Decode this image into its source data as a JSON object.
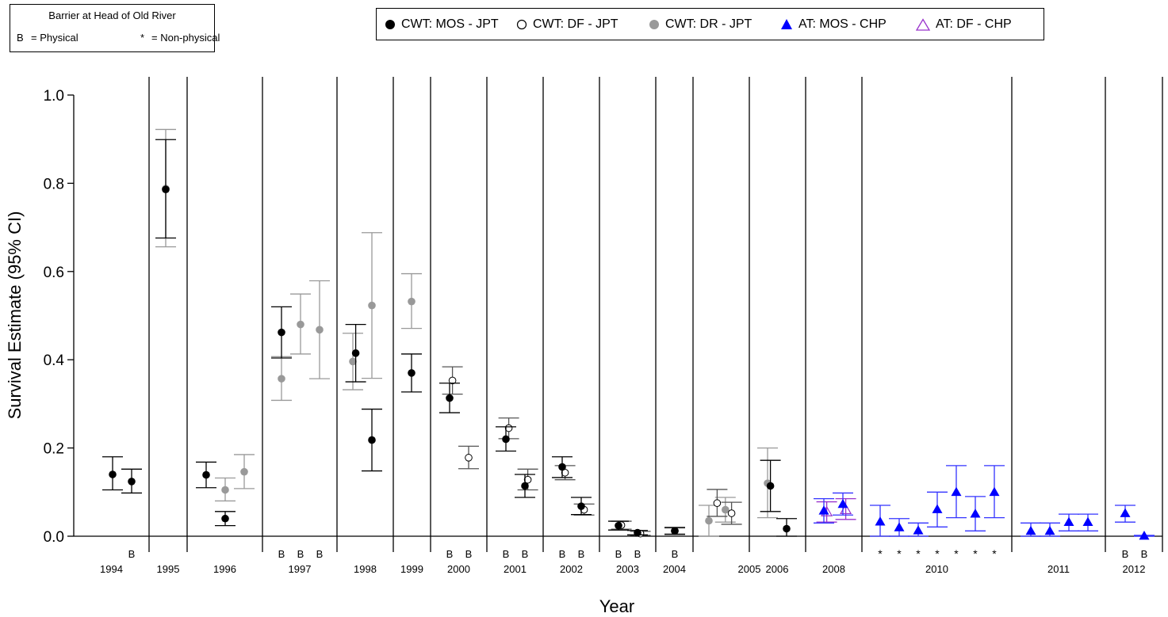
{
  "barrier_legend": {
    "title": "Barrier at Head of Old River",
    "physical_symbol": "B",
    "physical_label": "= Physical",
    "nonphysical_symbol": "*",
    "nonphysical_label": "= Non-physical"
  },
  "series_legend": [
    {
      "key": "mos_jpt",
      "label": "CWT: MOS - JPT",
      "marker": "filled-circle",
      "color": "#000000"
    },
    {
      "key": "df_jpt",
      "label": "CWT: DF - JPT",
      "marker": "open-circle",
      "color": "#000000"
    },
    {
      "key": "dr_jpt",
      "label": "CWT: DR - JPT",
      "marker": "filled-circle",
      "color": "#999999"
    },
    {
      "key": "at_mos_chp",
      "label": "AT: MOS - CHP",
      "marker": "filled-triangle",
      "color": "#0000ff"
    },
    {
      "key": "at_df_chp",
      "label": "AT: DF - CHP",
      "marker": "open-triangle",
      "color": "#9933cc"
    }
  ],
  "chart_data": {
    "type": "scatter",
    "xlabel": "Year",
    "ylabel": "Survival Estimate (95% CI)",
    "ylim": [
      0,
      1.0
    ],
    "yticks": [
      "0.0",
      "0.2",
      "0.4",
      "0.6",
      "0.8",
      "1.0"
    ],
    "years": [
      "1994",
      "1995",
      "1996",
      "1997",
      "1998",
      "1999",
      "2000",
      "2001",
      "2002",
      "2003",
      "2004",
      "2005",
      "2006",
      "2008",
      "2010",
      "2011",
      "2012"
    ],
    "points": [
      {
        "year": "1994",
        "slot": 0,
        "series": "mos_jpt",
        "est": 0.14,
        "lo": 0.105,
        "hi": 0.18
      },
      {
        "year": "1994",
        "slot": 1,
        "series": "mos_jpt",
        "est": 0.124,
        "lo": 0.098,
        "hi": 0.152,
        "barrier": "B"
      },
      {
        "year": "1995",
        "slot": 0,
        "series": "dr_jpt",
        "est": 0.788,
        "lo": 0.656,
        "hi": 0.922
      },
      {
        "year": "1995",
        "slot": 0.15,
        "series": "mos_jpt",
        "est": 0.786,
        "lo": 0.676,
        "hi": 0.899
      },
      {
        "year": "1996",
        "slot": 0,
        "series": "mos_jpt",
        "est": 0.139,
        "lo": 0.11,
        "hi": 0.168
      },
      {
        "year": "1996",
        "slot": 1,
        "series": "dr_jpt",
        "est": 0.105,
        "lo": 0.08,
        "hi": 0.132
      },
      {
        "year": "1996",
        "slot": 1,
        "series": "mos_jpt",
        "est": 0.04,
        "lo": 0.024,
        "hi": 0.056
      },
      {
        "year": "1996",
        "slot": 2,
        "series": "dr_jpt",
        "est": 0.146,
        "lo": 0.108,
        "hi": 0.185
      },
      {
        "year": "1997",
        "slot": 0,
        "series": "mos_jpt",
        "est": 0.462,
        "lo": 0.404,
        "hi": 0.52,
        "barrier": "B"
      },
      {
        "year": "1997",
        "slot": 0,
        "series": "dr_jpt",
        "est": 0.357,
        "lo": 0.308,
        "hi": 0.407
      },
      {
        "year": "1997",
        "slot": 1,
        "series": "dr_jpt",
        "est": 0.48,
        "lo": 0.413,
        "hi": 0.549,
        "barrier": "B"
      },
      {
        "year": "1997",
        "slot": 2,
        "series": "dr_jpt",
        "est": 0.468,
        "lo": 0.357,
        "hi": 0.579,
        "barrier": "B"
      },
      {
        "year": "1998",
        "slot": 0,
        "series": "dr_jpt",
        "est": 0.396,
        "lo": 0.332,
        "hi": 0.46
      },
      {
        "year": "1998",
        "slot": 0.15,
        "series": "mos_jpt",
        "est": 0.415,
        "lo": 0.35,
        "hi": 0.48
      },
      {
        "year": "1998",
        "slot": 1,
        "series": "dr_jpt",
        "est": 0.523,
        "lo": 0.358,
        "hi": 0.688
      },
      {
        "year": "1998",
        "slot": 1,
        "series": "mos_jpt",
        "est": 0.218,
        "lo": 0.148,
        "hi": 0.288
      },
      {
        "year": "1999",
        "slot": 0,
        "series": "dr_jpt",
        "est": 0.532,
        "lo": 0.471,
        "hi": 0.595
      },
      {
        "year": "1999",
        "slot": 0,
        "series": "mos_jpt",
        "est": 0.37,
        "lo": 0.327,
        "hi": 0.413
      },
      {
        "year": "2000",
        "slot": 0,
        "series": "mos_jpt",
        "est": 0.313,
        "lo": 0.28,
        "hi": 0.347,
        "barrier": "B"
      },
      {
        "year": "2000",
        "slot": 0.15,
        "series": "df_jpt",
        "est": 0.353,
        "lo": 0.322,
        "hi": 0.384
      },
      {
        "year": "2000",
        "slot": 1,
        "series": "df_jpt",
        "est": 0.178,
        "lo": 0.153,
        "hi": 0.204,
        "barrier": "B"
      },
      {
        "year": "2001",
        "slot": 0,
        "series": "mos_jpt",
        "est": 0.22,
        "lo": 0.193,
        "hi": 0.248,
        "barrier": "B"
      },
      {
        "year": "2001",
        "slot": 0.15,
        "series": "df_jpt",
        "est": 0.245,
        "lo": 0.221,
        "hi": 0.268
      },
      {
        "year": "2001",
        "slot": 1,
        "series": "mos_jpt",
        "est": 0.114,
        "lo": 0.088,
        "hi": 0.14,
        "barrier": "B"
      },
      {
        "year": "2001",
        "slot": 1.15,
        "series": "df_jpt",
        "est": 0.128,
        "lo": 0.105,
        "hi": 0.152
      },
      {
        "year": "2002",
        "slot": 0,
        "series": "mos_jpt",
        "est": 0.157,
        "lo": 0.133,
        "hi": 0.18,
        "barrier": "B"
      },
      {
        "year": "2002",
        "slot": 0.15,
        "series": "df_jpt",
        "est": 0.144,
        "lo": 0.128,
        "hi": 0.16
      },
      {
        "year": "2002",
        "slot": 1,
        "series": "mos_jpt",
        "est": 0.068,
        "lo": 0.049,
        "hi": 0.088,
        "barrier": "B"
      },
      {
        "year": "2002",
        "slot": 1.15,
        "series": "df_jpt",
        "est": 0.06,
        "lo": 0.048,
        "hi": 0.073
      },
      {
        "year": "2003",
        "slot": 0,
        "series": "mos_jpt",
        "est": 0.024,
        "lo": 0.014,
        "hi": 0.034,
        "barrier": "B"
      },
      {
        "year": "2003",
        "slot": 0.15,
        "series": "df_jpt",
        "est": 0.025,
        "lo": 0.016,
        "hi": 0.034
      },
      {
        "year": "2003",
        "slot": 1,
        "series": "mos_jpt",
        "est": 0.008,
        "lo": 0.003,
        "hi": 0.013,
        "barrier": "B"
      },
      {
        "year": "2003",
        "slot": 1.15,
        "series": "df_jpt",
        "est": 0.006,
        "lo": 0.002,
        "hi": 0.011
      },
      {
        "year": "2004",
        "slot": 0,
        "series": "mos_jpt",
        "est": 0.012,
        "lo": 0.004,
        "hi": 0.02,
        "barrier": "B"
      },
      {
        "year": "2004",
        "slot": 0.15,
        "series": "df_jpt",
        "est": 0.012,
        "lo": 0.005,
        "hi": 0.019
      },
      {
        "year": "2005",
        "slot": 0,
        "series": "dr_jpt",
        "est": 0.035,
        "lo": 0.0,
        "hi": 0.07
      },
      {
        "year": "2005",
        "slot": 0.4,
        "series": "df_jpt",
        "est": 0.075,
        "lo": 0.045,
        "hi": 0.106
      },
      {
        "year": "2005",
        "slot": 0.8,
        "series": "dr_jpt",
        "est": 0.06,
        "lo": 0.032,
        "hi": 0.088
      },
      {
        "year": "2005",
        "slot": 1.1,
        "series": "df_jpt",
        "est": 0.052,
        "lo": 0.027,
        "hi": 0.077
      },
      {
        "year": "2006",
        "slot": 0,
        "series": "dr_jpt",
        "est": 0.12,
        "lo": 0.042,
        "hi": 0.2
      },
      {
        "year": "2006",
        "slot": 0.15,
        "series": "mos_jpt",
        "est": 0.114,
        "lo": 0.056,
        "hi": 0.172
      },
      {
        "year": "2006",
        "slot": 1,
        "series": "mos_jpt",
        "est": 0.017,
        "lo": 0.0,
        "hi": 0.04
      },
      {
        "year": "2008",
        "slot": 0,
        "series": "at_mos_chp",
        "est": 0.058,
        "lo": 0.03,
        "hi": 0.085
      },
      {
        "year": "2008",
        "slot": 0.15,
        "series": "at_df_chp",
        "est": 0.055,
        "lo": 0.032,
        "hi": 0.078
      },
      {
        "year": "2008",
        "slot": 1,
        "series": "at_mos_chp",
        "est": 0.073,
        "lo": 0.048,
        "hi": 0.098
      },
      {
        "year": "2008",
        "slot": 1.15,
        "series": "at_df_chp",
        "est": 0.06,
        "lo": 0.038,
        "hi": 0.085
      },
      {
        "year": "2010",
        "slot": 0,
        "series": "at_mos_chp",
        "est": 0.033,
        "lo": 0.0,
        "hi": 0.07,
        "barrier": "*"
      },
      {
        "year": "2010",
        "slot": 1,
        "series": "at_mos_chp",
        "est": 0.02,
        "lo": 0.0,
        "hi": 0.04,
        "barrier": "*"
      },
      {
        "year": "2010",
        "slot": 2,
        "series": "at_mos_chp",
        "est": 0.013,
        "lo": 0.0,
        "hi": 0.03,
        "barrier": "*"
      },
      {
        "year": "2010",
        "slot": 3,
        "series": "at_mos_chp",
        "est": 0.061,
        "lo": 0.021,
        "hi": 0.1,
        "barrier": "*"
      },
      {
        "year": "2010",
        "slot": 4,
        "series": "at_mos_chp",
        "est": 0.1,
        "lo": 0.042,
        "hi": 0.16,
        "barrier": "*"
      },
      {
        "year": "2010",
        "slot": 5,
        "series": "at_mos_chp",
        "est": 0.051,
        "lo": 0.012,
        "hi": 0.09,
        "barrier": "*"
      },
      {
        "year": "2010",
        "slot": 6,
        "series": "at_mos_chp",
        "est": 0.1,
        "lo": 0.042,
        "hi": 0.16,
        "barrier": "*"
      },
      {
        "year": "2011",
        "slot": 0,
        "series": "at_mos_chp",
        "est": 0.012,
        "lo": 0.0,
        "hi": 0.03
      },
      {
        "year": "2011",
        "slot": 1,
        "series": "at_mos_chp",
        "est": 0.012,
        "lo": 0.0,
        "hi": 0.03
      },
      {
        "year": "2011",
        "slot": 2,
        "series": "at_mos_chp",
        "est": 0.032,
        "lo": 0.012,
        "hi": 0.05
      },
      {
        "year": "2011",
        "slot": 3,
        "series": "at_mos_chp",
        "est": 0.032,
        "lo": 0.012,
        "hi": 0.05
      },
      {
        "year": "2012",
        "slot": 0,
        "series": "at_mos_chp",
        "est": 0.052,
        "lo": 0.032,
        "hi": 0.07,
        "barrier": "B"
      },
      {
        "year": "2012",
        "slot": 1,
        "series": "at_mos_chp",
        "est": 0.001,
        "lo": 0.0,
        "hi": 0.002,
        "barrier": "B"
      }
    ]
  }
}
